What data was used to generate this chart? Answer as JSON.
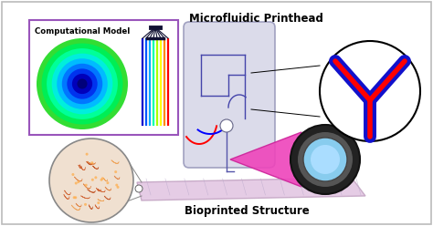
{
  "title_top": "Microfluidic Printhead",
  "title_bottom": "Bioprinted Structure",
  "comp_model_label": "Computational Model",
  "comp_model_border": "#9955bb",
  "figsize": [
    4.74,
    2.48
  ],
  "dpi": 100
}
